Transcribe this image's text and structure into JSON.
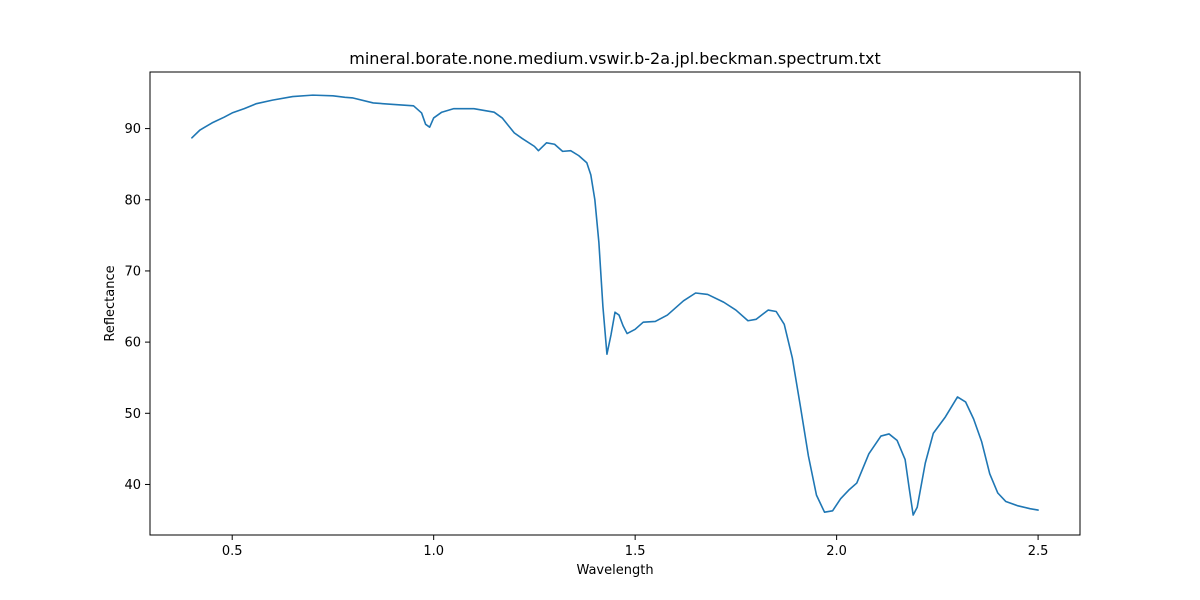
{
  "chart_data": {
    "type": "line",
    "title": "mineral.borate.none.medium.vswir.b-2a.jpl.beckman.spectrum.txt",
    "xlabel": "Wavelength",
    "ylabel": "Reflectance",
    "xlim": [
      0.296,
      2.604
    ],
    "ylim": [
      32.9,
      97.95
    ],
    "xticks": [
      0.5,
      1.0,
      1.5,
      2.0,
      2.5
    ],
    "xtick_labels": [
      "0.5",
      "1.0",
      "1.5",
      "2.0",
      "2.5"
    ],
    "yticks": [
      40,
      50,
      60,
      70,
      80,
      90
    ],
    "ytick_labels": [
      "40",
      "50",
      "60",
      "70",
      "80",
      "90"
    ],
    "grid": false,
    "legend": "none",
    "series": [
      {
        "color": "#1f77b4",
        "x": [
          0.4,
          0.42,
          0.45,
          0.48,
          0.5,
          0.53,
          0.56,
          0.6,
          0.65,
          0.7,
          0.75,
          0.78,
          0.8,
          0.85,
          0.9,
          0.95,
          0.97,
          0.98,
          0.99,
          1.0,
          1.02,
          1.05,
          1.1,
          1.15,
          1.17,
          1.2,
          1.22,
          1.25,
          1.26,
          1.28,
          1.3,
          1.32,
          1.34,
          1.36,
          1.38,
          1.39,
          1.4,
          1.41,
          1.42,
          1.43,
          1.44,
          1.45,
          1.46,
          1.47,
          1.48,
          1.5,
          1.52,
          1.55,
          1.58,
          1.62,
          1.65,
          1.68,
          1.72,
          1.75,
          1.78,
          1.8,
          1.83,
          1.85,
          1.87,
          1.89,
          1.91,
          1.93,
          1.95,
          1.97,
          1.99,
          2.01,
          2.03,
          2.05,
          2.08,
          2.11,
          2.13,
          2.15,
          2.17,
          2.18,
          2.19,
          2.2,
          2.22,
          2.24,
          2.27,
          2.3,
          2.32,
          2.34,
          2.36,
          2.38,
          2.4,
          2.42,
          2.45,
          2.48,
          2.5
        ],
        "y": [
          88.7,
          89.8,
          90.8,
          91.6,
          92.2,
          92.8,
          93.5,
          94.0,
          94.5,
          94.7,
          94.6,
          94.4,
          94.3,
          93.6,
          93.4,
          93.2,
          92.2,
          90.6,
          90.2,
          91.5,
          92.3,
          92.8,
          92.8,
          92.3,
          91.5,
          89.4,
          88.6,
          87.5,
          86.9,
          88.0,
          87.8,
          86.8,
          86.9,
          86.2,
          85.2,
          83.5,
          80.0,
          74.0,
          65.0,
          58.3,
          61.0,
          64.2,
          63.8,
          62.3,
          61.2,
          61.8,
          62.8,
          62.9,
          63.8,
          65.8,
          66.9,
          66.7,
          65.6,
          64.5,
          63.0,
          63.2,
          64.5,
          64.3,
          62.5,
          57.8,
          51.0,
          44.0,
          38.5,
          36.1,
          36.3,
          38.0,
          39.2,
          40.2,
          44.3,
          46.8,
          47.1,
          46.2,
          43.5,
          39.5,
          35.7,
          36.8,
          43.0,
          47.2,
          49.5,
          52.3,
          51.6,
          49.2,
          46.0,
          41.5,
          38.8,
          37.6,
          37.0,
          36.6,
          36.4
        ]
      }
    ]
  }
}
